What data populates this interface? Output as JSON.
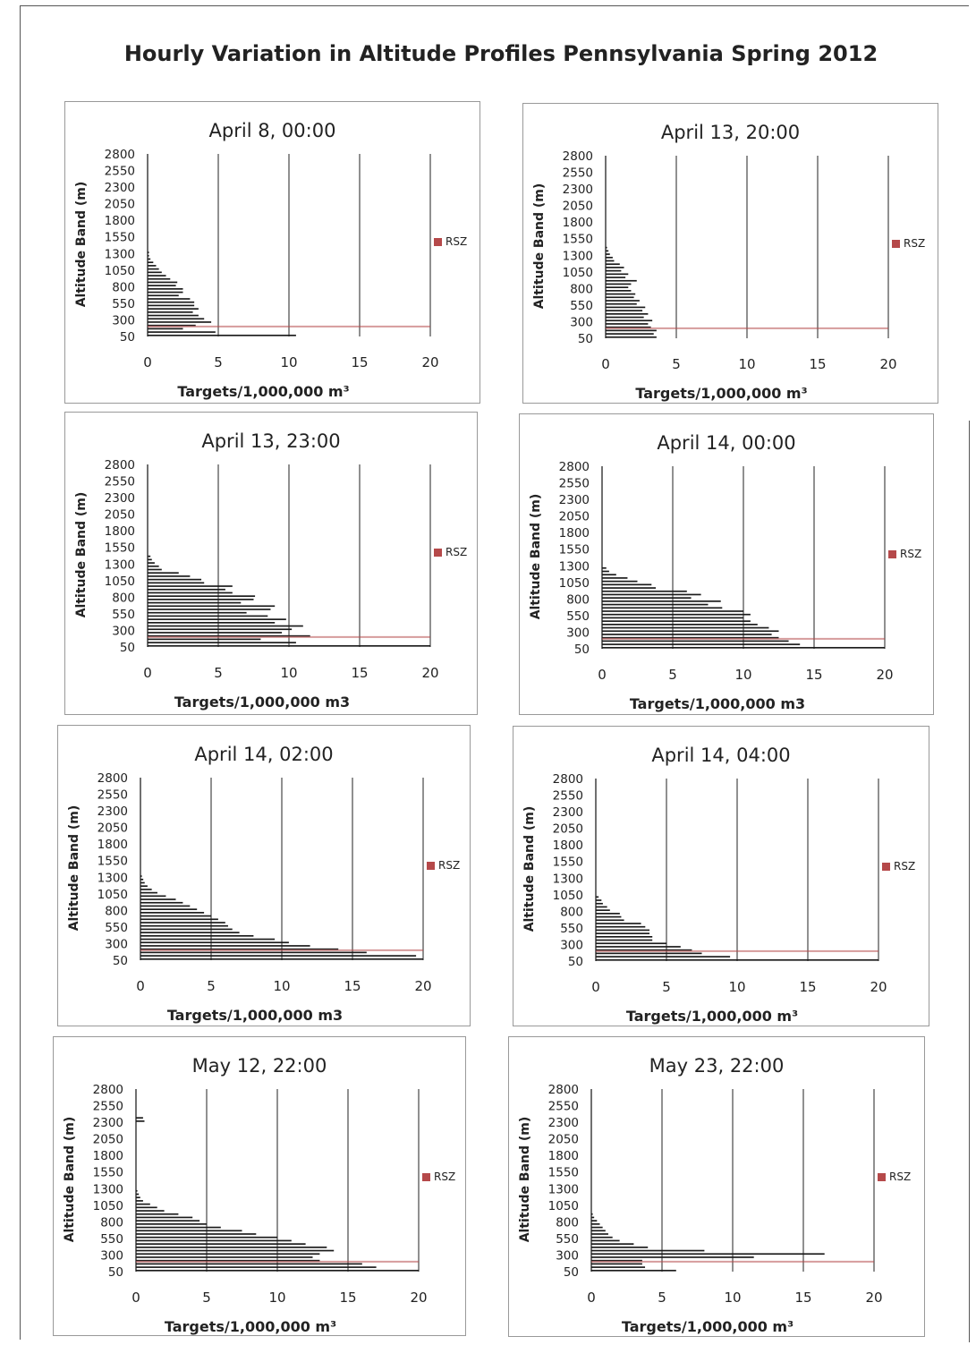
{
  "title": "Hourly Variation in Altitude Profiles Pennsylvania Spring 2012",
  "colors": {
    "bar": "#1a1a1a",
    "rsz": "#b5494a",
    "grid": "#222222"
  },
  "chart_data": [
    {
      "type": "bar",
      "orientation": "horizontal",
      "title": "April 8, 00:00",
      "xlabel": "Targets/1,000,000 m³",
      "ylabel": "Altitude Band (m)",
      "xlim": [
        0,
        20
      ],
      "xticks": [
        "0",
        "5",
        "10",
        "15",
        "20"
      ],
      "yticks": [
        "2800",
        "2550",
        "2300",
        "2050",
        "1800",
        "1550",
        "1300",
        "1050",
        "800",
        "550",
        "300",
        "50"
      ],
      "legend": "RSZ",
      "rsz_band": [
        50,
        200
      ],
      "series": [
        {
          "name": "",
          "values": [
            10.5,
            4.8,
            2.5,
            3.4,
            4.5,
            4.0,
            3.6,
            3.2,
            3.6,
            3.3,
            3.3,
            3.0,
            2.2,
            2.5,
            2.5,
            2.0,
            2.1,
            1.6,
            1.3,
            1.0,
            0.8,
            0.6,
            0.4,
            0.2,
            0.1,
            0.1
          ]
        }
      ]
    },
    {
      "type": "bar",
      "orientation": "horizontal",
      "title": "April 13, 20:00",
      "xlabel": "Targets/1,000,000 m³",
      "ylabel": "Altitude Band (m)",
      "xlim": [
        0,
        20
      ],
      "xticks": [
        "0",
        "5",
        "10",
        "15",
        "20"
      ],
      "yticks": [
        "2800",
        "2550",
        "2300",
        "2050",
        "1800",
        "1550",
        "1300",
        "1050",
        "800",
        "550",
        "300",
        "50"
      ],
      "legend": "RSZ",
      "rsz_band": [
        50,
        200
      ],
      "series": [
        {
          "name": "",
          "values": [
            3.6,
            3.4,
            3.6,
            3.2,
            3.0,
            3.3,
            2.7,
            3.0,
            2.6,
            2.8,
            2.2,
            2.4,
            2.0,
            2.1,
            1.8,
            1.6,
            1.8,
            2.2,
            1.4,
            1.6,
            1.1,
            1.3,
            1.0,
            0.6,
            0.5,
            0.3,
            0.2,
            0.1
          ]
        }
      ]
    },
    {
      "type": "bar",
      "orientation": "horizontal",
      "title": "April 13, 23:00",
      "xlabel": "Targets/1,000,000 m3",
      "ylabel": "Altitude Band (m)",
      "xlim": [
        0,
        20
      ],
      "xticks": [
        "0",
        "5",
        "10",
        "15",
        "20"
      ],
      "yticks": [
        "2800",
        "2550",
        "2300",
        "2050",
        "1800",
        "1550",
        "1300",
        "1050",
        "800",
        "550",
        "300",
        "50"
      ],
      "legend": "RSZ",
      "rsz_band": [
        50,
        200
      ],
      "series": [
        {
          "name": "",
          "values": [
            20.0,
            10.5,
            8.0,
            11.5,
            9.5,
            10.2,
            11.0,
            9.0,
            9.8,
            8.5,
            7.0,
            8.7,
            9.0,
            6.6,
            7.5,
            7.6,
            6.0,
            5.5,
            6.0,
            4.0,
            3.8,
            3.0,
            2.2,
            1.0,
            0.8,
            0.5,
            0.3,
            0.2
          ]
        }
      ]
    },
    {
      "type": "bar",
      "orientation": "horizontal",
      "title": "April 14, 00:00",
      "xlabel": "Targets/1,000,000 m3",
      "ylabel": "Altitude Band (m)",
      "xlim": [
        0,
        20
      ],
      "xticks": [
        "0",
        "5",
        "10",
        "15",
        "20"
      ],
      "yticks": [
        "2800",
        "2550",
        "2300",
        "2050",
        "1800",
        "1550",
        "1300",
        "1050",
        "800",
        "550",
        "300",
        "50"
      ],
      "legend": "RSZ",
      "rsz_band": [
        50,
        200
      ],
      "series": [
        {
          "name": "",
          "values": [
            20.0,
            14.0,
            13.2,
            12.5,
            12.0,
            12.5,
            11.8,
            11.0,
            10.5,
            10.0,
            10.5,
            10.0,
            8.5,
            7.5,
            8.4,
            6.3,
            7.0,
            6.0,
            3.8,
            3.5,
            2.5,
            1.8,
            1.0,
            0.5,
            0.3
          ]
        }
      ]
    },
    {
      "type": "bar",
      "orientation": "horizontal",
      "title": "April 14, 02:00",
      "xlabel": "Targets/1,000,000 m3",
      "ylabel": "Altitude Band (m)",
      "xlim": [
        0,
        20
      ],
      "xticks": [
        "0",
        "5",
        "10",
        "15",
        "20"
      ],
      "yticks": [
        "2800",
        "2550",
        "2300",
        "2050",
        "1800",
        "1550",
        "1300",
        "1050",
        "800",
        "550",
        "300",
        "50"
      ],
      "legend": "RSZ",
      "rsz_band": [
        50,
        200
      ],
      "series": [
        {
          "name": "",
          "values": [
            20.0,
            19.5,
            16.0,
            14.0,
            12.0,
            10.5,
            9.5,
            8.0,
            7.0,
            6.5,
            6.2,
            6.0,
            5.5,
            5.0,
            4.5,
            4.0,
            3.5,
            3.0,
            2.5,
            1.8,
            1.2,
            0.8,
            0.5,
            0.3,
            0.2,
            0.1
          ]
        }
      ]
    },
    {
      "type": "bar",
      "orientation": "horizontal",
      "title": "April 14, 04:00",
      "xlabel": "Targets/1,000,000 m³",
      "ylabel": "Altitude Band (m)",
      "xlim": [
        0,
        20
      ],
      "xticks": [
        "0",
        "5",
        "10",
        "15",
        "20"
      ],
      "yticks": [
        "2800",
        "2550",
        "2300",
        "2050",
        "1800",
        "1550",
        "1300",
        "1050",
        "800",
        "550",
        "300",
        "50"
      ],
      "legend": "RSZ",
      "rsz_band": [
        50,
        200
      ],
      "series": [
        {
          "name": "",
          "values": [
            20.0,
            9.5,
            7.5,
            6.8,
            6.0,
            5.0,
            4.0,
            4.0,
            3.8,
            3.8,
            3.5,
            3.2,
            2.0,
            1.8,
            1.7,
            1.0,
            0.8,
            0.5,
            0.4,
            0.2
          ]
        }
      ]
    },
    {
      "type": "bar",
      "orientation": "horizontal",
      "title": "May 12, 22:00",
      "xlabel": "Targets/1,000,000 m³",
      "ylabel": "Altitude Band (m)",
      "xlim": [
        0,
        20
      ],
      "xticks": [
        "0",
        "5",
        "10",
        "15",
        "20"
      ],
      "yticks": [
        "2800",
        "2550",
        "2300",
        "2050",
        "1800",
        "1550",
        "1300",
        "1050",
        "800",
        "550",
        "300",
        "50"
      ],
      "legend": "RSZ",
      "rsz_band": [
        50,
        200
      ],
      "series": [
        {
          "name": "",
          "values": [
            20.0,
            17.0,
            16.0,
            13.0,
            12.5,
            13.0,
            14.0,
            13.5,
            12.0,
            11.0,
            10.0,
            8.5,
            7.5,
            6.0,
            5.0,
            4.5,
            4.0,
            3.0,
            2.0,
            1.5,
            1.0,
            0.5,
            0.3,
            0.2,
            0.1,
            0,
            0,
            0,
            0,
            0,
            0,
            0,
            0,
            0,
            0,
            0,
            0,
            0,
            0,
            0,
            0,
            0,
            0,
            0,
            0,
            0.6,
            0.5
          ]
        }
      ]
    },
    {
      "type": "bar",
      "orientation": "horizontal",
      "title": "May 23, 22:00",
      "xlabel": "Targets/1,000,000 m³",
      "ylabel": "Altitude Band (m)",
      "xlim": [
        0,
        20
      ],
      "xticks": [
        "0",
        "5",
        "10",
        "15",
        "20"
      ],
      "yticks": [
        "2800",
        "2550",
        "2300",
        "2050",
        "1800",
        "1550",
        "1300",
        "1050",
        "800",
        "550",
        "300",
        "50"
      ],
      "legend": "RSZ",
      "rsz_band": [
        50,
        200
      ],
      "series": [
        {
          "name": "",
          "values": [
            6.0,
            3.8,
            3.6,
            3.6,
            11.5,
            16.5,
            8.0,
            4.0,
            3.0,
            2.0,
            1.5,
            1.2,
            1.0,
            0.8,
            0.6,
            0.4,
            0.2,
            0.1
          ]
        }
      ]
    }
  ]
}
